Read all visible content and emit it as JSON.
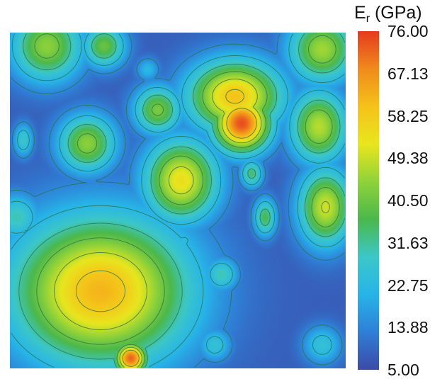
{
  "chart_data": {
    "type": "heatmap",
    "title": "",
    "colorbar": {
      "label_main": "E",
      "label_sub": "r",
      "label_unit": " (GPa)",
      "ticks": [
        "76.00",
        "67.13",
        "58.25",
        "49.38",
        "40.50",
        "31.63",
        "22.75",
        "13.88",
        "5.00"
      ],
      "range": [
        5.0,
        76.0
      ],
      "colors": [
        "#3c4aa8",
        "#2f7fd6",
        "#27b4e8",
        "#3cc7c8",
        "#4bb84b",
        "#8fd23a",
        "#e8e61e",
        "#f5c21a",
        "#f08a1c",
        "#e63a1f"
      ]
    },
    "grid_extent": {
      "x": [
        0,
        1
      ],
      "y": [
        0,
        1
      ]
    },
    "background_value": 8,
    "features": [
      {
        "x": 0.27,
        "y": 0.77,
        "peak": 62,
        "radius": 0.155,
        "aspect": 1.2
      },
      {
        "x": 0.22,
        "y": 0.71,
        "peak": 48,
        "radius": 0.09,
        "aspect": 1.0
      },
      {
        "x": 0.69,
        "y": 0.27,
        "peak": 74,
        "radius": 0.06,
        "aspect": 1.0
      },
      {
        "x": 0.67,
        "y": 0.19,
        "peak": 60,
        "radius": 0.075,
        "aspect": 1.3
      },
      {
        "x": 0.51,
        "y": 0.44,
        "peak": 54,
        "radius": 0.085,
        "aspect": 0.9
      },
      {
        "x": 0.94,
        "y": 0.52,
        "peak": 50,
        "radius": 0.08,
        "aspect": 0.7
      },
      {
        "x": 0.92,
        "y": 0.28,
        "peak": 48,
        "radius": 0.075,
        "aspect": 0.8
      },
      {
        "x": 0.93,
        "y": 0.05,
        "peak": 46,
        "radius": 0.07,
        "aspect": 1.0
      },
      {
        "x": 0.11,
        "y": 0.04,
        "peak": 44,
        "radius": 0.075,
        "aspect": 1.0
      },
      {
        "x": 0.23,
        "y": 0.33,
        "peak": 44,
        "radius": 0.06,
        "aspect": 1.0
      },
      {
        "x": 0.44,
        "y": 0.23,
        "peak": 42,
        "radius": 0.05,
        "aspect": 1.0
      },
      {
        "x": 0.28,
        "y": 0.04,
        "peak": 40,
        "radius": 0.045,
        "aspect": 1.0
      },
      {
        "x": 0.36,
        "y": 0.97,
        "peak": 72,
        "radius": 0.035,
        "aspect": 1.0
      },
      {
        "x": 0.76,
        "y": 0.55,
        "peak": 36,
        "radius": 0.04,
        "aspect": 0.6
      },
      {
        "x": 0.72,
        "y": 0.42,
        "peak": 34,
        "radius": 0.03,
        "aspect": 0.8
      },
      {
        "x": 0.04,
        "y": 0.32,
        "peak": 28,
        "radius": 0.035,
        "aspect": 0.6
      },
      {
        "x": 0.63,
        "y": 0.72,
        "peak": 30,
        "radius": 0.035,
        "aspect": 1.0
      },
      {
        "x": 0.61,
        "y": 0.93,
        "peak": 26,
        "radius": 0.035,
        "aspect": 1.0
      },
      {
        "x": 0.93,
        "y": 0.93,
        "peak": 26,
        "radius": 0.04,
        "aspect": 1.0
      },
      {
        "x": 0.52,
        "y": 0.62,
        "peak": 24,
        "radius": 0.02,
        "aspect": 1.0
      },
      {
        "x": 0.41,
        "y": 0.11,
        "peak": 22,
        "radius": 0.025,
        "aspect": 1.0
      },
      {
        "x": 0.56,
        "y": 0.33,
        "peak": 22,
        "radius": 0.025,
        "aspect": 1.0
      },
      {
        "x": 0.02,
        "y": 0.55,
        "peak": 30,
        "radius": 0.05,
        "aspect": 1.0
      },
      {
        "x": 0.79,
        "y": 0.14,
        "peak": 22,
        "radius": 0.025,
        "aspect": 1.0
      }
    ]
  }
}
